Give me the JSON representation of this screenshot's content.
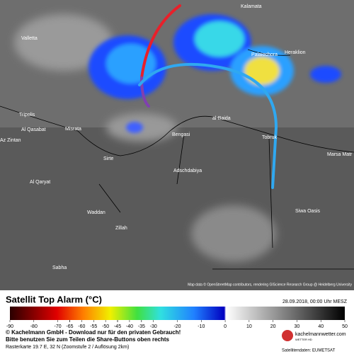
{
  "map": {
    "cities": [
      "Kalamata",
      "Valletta",
      "Tripolis",
      "Al Qasabat",
      "Misrata",
      "Az Zintan",
      "Sirte",
      "Bengasi",
      "al-Baida",
      "Tobruk",
      "Adschdabiya",
      "Marsa Matr",
      "Al Qaryat",
      "Waddan",
      "Zillah",
      "Siwa Oasis",
      "Sabha",
      "Heraklion",
      "Palaiochora"
    ],
    "attribution": "Map data © OpenStreetMap contributors, rendering GIScience Research Group @ Heidelberg University"
  },
  "legend": {
    "title": "Satellit Top Alarm (°C)",
    "date": "28.09.2018, 00:00 Uhr MESZ",
    "lim": [
      -90,
      50
    ],
    "ticks": [
      -90,
      -80,
      -70,
      -60,
      -50,
      -40,
      -30,
      -20,
      -10,
      0,
      10,
      20,
      30,
      40,
      50
    ],
    "ticks_hidden": [
      -65,
      -55,
      -45,
      -35
    ],
    "ticks_shown_labels": [
      -65,
      -55,
      -45,
      -35
    ]
  },
  "footer": {
    "line1": "© Kachelmann GmbH - Download nur für den privaten Gebrauch!",
    "line2": "Bitte benutzen Sie zum Teilen die Share-Buttons oben rechts",
    "line3": "Rasterkarte 19.7 E, 32 N (Zoomstufe 2 / Auflösung 2km)",
    "logo": "kachelmannwetter.com",
    "logo_sub": "WETTER HD",
    "source": "Satellitendaten: EUMETSAT"
  }
}
